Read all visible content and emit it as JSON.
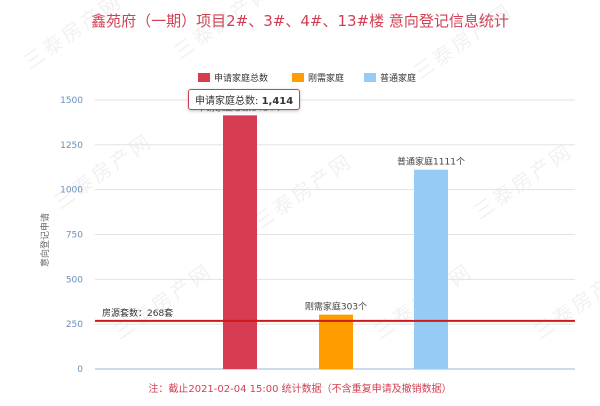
{
  "page": {
    "title": "鑫苑府（一期）项目2#、3#、4#、13#楼 意向登记信息统计",
    "footnote": "注：截止2021-02-04 15:00 统计数据（不含重复申请及撤销数据）",
    "watermark": "三泰房产网"
  },
  "tooltip": {
    "label": "申请家庭总数:",
    "value": "1,414"
  },
  "chart_data": {
    "type": "bar",
    "categories": [
      "申请家庭总数",
      "刚需家庭",
      "普通家庭"
    ],
    "values": [
      1414,
      303,
      1111
    ],
    "colors": [
      "#d63c52",
      "#ff9d00",
      "#96cbf6"
    ],
    "data_labels": [
      "申请家庭总数1414个",
      "刚需家庭303个",
      "普通家庭1111个"
    ],
    "series": [
      {
        "name": "申请家庭总数",
        "color": "#d63c52"
      },
      {
        "name": "刚需家庭",
        "color": "#ff9d00"
      },
      {
        "name": "普通家庭",
        "color": "#96cbf6"
      }
    ],
    "ylabel": "意向登记申请",
    "ylim": [
      0,
      1600
    ],
    "yticks": [
      0,
      250,
      500,
      750,
      1000,
      1250,
      1500
    ],
    "grid": true,
    "legend_position": "top-center",
    "reference_line": {
      "value": 268,
      "label": "房源套数：268套",
      "color": "#cc1b1b"
    }
  }
}
